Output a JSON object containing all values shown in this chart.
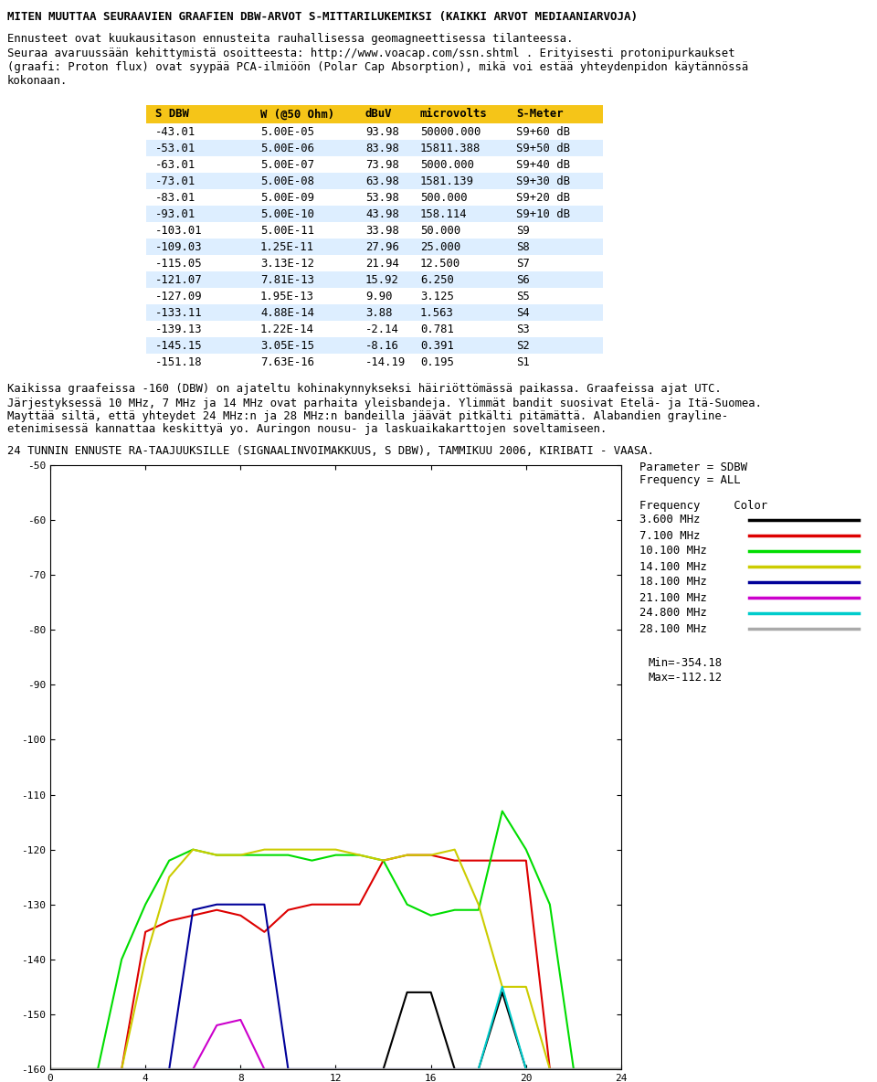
{
  "title_top": "MITEN MUUTTAA SEURAAVIEN GRAAFIEN DBW-ARVOT S-MITTARILUKEMIKSI (KAIKKI ARVOT MEDIAANIARVOJA)",
  "para1": "Ennusteet ovat kuukausitason ennusteita rauhallisessa geomagneettisessa tilanteessa.",
  "para2": "Seuraa avaruussään kehittymistä osoitteesta: http://www.voacap.com/ssn.shtml . Erityisesti protonipurkaukset\n(graafi: Proton flux) ovat syypää PCA-ilmiöön (Polar Cap Absorption), mikä voi estää yhteydenpidon käytännössä\nkokonaan.",
  "table_header": [
    "S DBW",
    "W (@50 Ohm)",
    "dBuV",
    "microvolts",
    "S-Meter"
  ],
  "table_data": [
    [
      "-43.01",
      "5.00E-05",
      "93.98",
      "50000.000",
      "S9+60 dB"
    ],
    [
      "-53.01",
      "5.00E-06",
      "83.98",
      "15811.388",
      "S9+50 dB"
    ],
    [
      "-63.01",
      "5.00E-07",
      "73.98",
      "5000.000",
      "S9+40 dB"
    ],
    [
      "-73.01",
      "5.00E-08",
      "63.98",
      "1581.139",
      "S9+30 dB"
    ],
    [
      "-83.01",
      "5.00E-09",
      "53.98",
      "500.000",
      "S9+20 dB"
    ],
    [
      "-93.01",
      "5.00E-10",
      "43.98",
      "158.114",
      "S9+10 dB"
    ],
    [
      "-103.01",
      "5.00E-11",
      "33.98",
      "50.000",
      "S9"
    ],
    [
      "-109.03",
      "1.25E-11",
      "27.96",
      "25.000",
      "S8"
    ],
    [
      "-115.05",
      "3.13E-12",
      "21.94",
      "12.500",
      "S7"
    ],
    [
      "-121.07",
      "7.81E-13",
      "15.92",
      "6.250",
      "S6"
    ],
    [
      "-127.09",
      "1.95E-13",
      "9.90",
      "3.125",
      "S5"
    ],
    [
      "-133.11",
      "4.88E-14",
      "3.88",
      "1.563",
      "S4"
    ],
    [
      "-139.13",
      "1.22E-14",
      "-2.14",
      "0.781",
      "S3"
    ],
    [
      "-145.15",
      "3.05E-15",
      "-8.16",
      "0.391",
      "S2"
    ],
    [
      "-151.18",
      "7.63E-16",
      "-14.19",
      "0.195",
      "S1"
    ]
  ],
  "para3": "Kaikissa graafeissa -160 (DBW) on ajateltu kohinakynnykseksi häiriöttömässä paikassa. Graafeissa ajat UTC.",
  "para4a": "Järjestyksessä 10 MHz, 7 MHz ja 14 MHz ovat parhaita yleisbandeja. Ylimmät bandit suosivat Etelä- ja Itä-Suomea.",
  "para4b": "Mayttää siltä, että yhteydet 24 MHz:n ja 28 MHz:n bandeilla jäävät pitkälti pitämättä. Alabandien grayline-",
  "para4c": "etenimisessä kannattaa keskittyä yo. Auringon nousu- ja laskuaikakarttojen soveltamiseen.",
  "chart_title": "24 TUNNIN ENNUSTE RA-TAAJUUKSILLE (SIGNAALINVOIMAKKUUS, S DBW), TAMMIKUU 2006, KIRIBATI - VAASA.",
  "param_line1": "Parameter = SDBW",
  "param_line2": "Frequency = ALL",
  "freq_header": "Frequency     Color",
  "frequencies": [
    "3.600 MHz",
    "7.100 MHz",
    "10.100 MHz",
    "14.100 MHz",
    "18.100 MHz",
    "21.100 MHz",
    "24.800 MHz",
    "28.100 MHz"
  ],
  "freq_colors": [
    "#000000",
    "#dd0000",
    "#00dd00",
    "#cccc00",
    "#000099",
    "#cc00cc",
    "#00cccc",
    "#aaaaaa"
  ],
  "min_label": "Min=-354.18",
  "max_label": "Max=-112.12",
  "ylim": [
    -160,
    -50
  ],
  "xlim": [
    0,
    24
  ],
  "yticks": [
    -160,
    -150,
    -140,
    -130,
    -120,
    -110,
    -100,
    -90,
    -80,
    -70,
    -60,
    -50
  ],
  "xticks": [
    0,
    4,
    8,
    12,
    16,
    20,
    24
  ],
  "series": {
    "3.600": {
      "x": [
        0,
        1,
        2,
        3,
        4,
        5,
        6,
        7,
        8,
        9,
        10,
        11,
        12,
        13,
        14,
        15,
        16,
        17,
        18,
        19,
        20,
        21,
        22,
        23,
        24
      ],
      "y": [
        -160,
        -160,
        -160,
        -160,
        -160,
        -160,
        -160,
        -160,
        -160,
        -160,
        -160,
        -160,
        -160,
        -160,
        -160,
        -146,
        -146,
        -160,
        -160,
        -146,
        -160,
        -160,
        -160,
        -160,
        -160
      ]
    },
    "7.100": {
      "x": [
        0,
        1,
        2,
        3,
        4,
        5,
        6,
        7,
        8,
        9,
        10,
        11,
        12,
        13,
        14,
        15,
        16,
        17,
        18,
        19,
        20,
        21,
        22,
        23,
        24
      ],
      "y": [
        -160,
        -160,
        -160,
        -160,
        -135,
        -133,
        -132,
        -131,
        -132,
        -135,
        -131,
        -130,
        -130,
        -130,
        -122,
        -121,
        -121,
        -122,
        -122,
        -122,
        -122,
        -160,
        -160,
        -160,
        -160
      ]
    },
    "10.100": {
      "x": [
        0,
        1,
        2,
        3,
        4,
        5,
        6,
        7,
        8,
        9,
        10,
        11,
        12,
        13,
        14,
        15,
        16,
        17,
        18,
        19,
        20,
        21,
        22,
        23,
        24
      ],
      "y": [
        -160,
        -160,
        -160,
        -140,
        -130,
        -122,
        -120,
        -121,
        -121,
        -121,
        -121,
        -122,
        -121,
        -121,
        -122,
        -130,
        -132,
        -131,
        -131,
        -113,
        -120,
        -130,
        -160,
        -160,
        -160
      ]
    },
    "14.100": {
      "x": [
        0,
        1,
        2,
        3,
        4,
        5,
        6,
        7,
        8,
        9,
        10,
        11,
        12,
        13,
        14,
        15,
        16,
        17,
        18,
        19,
        20,
        21,
        22,
        23,
        24
      ],
      "y": [
        -160,
        -160,
        -160,
        -160,
        -140,
        -125,
        -120,
        -121,
        -121,
        -120,
        -120,
        -120,
        -120,
        -121,
        -122,
        -121,
        -121,
        -120,
        -130,
        -145,
        -145,
        -160,
        -160,
        -160,
        -160
      ]
    },
    "18.100": {
      "x": [
        0,
        1,
        2,
        3,
        4,
        5,
        6,
        7,
        8,
        9,
        10,
        11,
        12,
        13,
        14,
        15,
        16,
        17,
        18,
        19,
        20,
        21,
        22,
        23,
        24
      ],
      "y": [
        -160,
        -160,
        -160,
        -160,
        -160,
        -160,
        -131,
        -130,
        -130,
        -130,
        -160,
        -160,
        -160,
        -160,
        -160,
        -160,
        -160,
        -160,
        -160,
        -160,
        -160,
        -160,
        -160,
        -160,
        -160
      ]
    },
    "21.100": {
      "x": [
        0,
        1,
        2,
        3,
        4,
        5,
        6,
        7,
        8,
        9,
        10,
        11,
        12,
        13,
        14,
        15,
        16,
        17,
        18,
        19,
        20,
        21,
        22,
        23,
        24
      ],
      "y": [
        -160,
        -160,
        -160,
        -160,
        -160,
        -160,
        -160,
        -152,
        -151,
        -160,
        -160,
        -160,
        -160,
        -160,
        -160,
        -160,
        -160,
        -160,
        -160,
        -160,
        -160,
        -160,
        -160,
        -160,
        -160
      ]
    },
    "24.800": {
      "x": [
        0,
        1,
        2,
        3,
        4,
        5,
        6,
        7,
        8,
        9,
        10,
        11,
        12,
        13,
        14,
        15,
        16,
        17,
        18,
        19,
        20,
        21,
        22,
        23,
        24
      ],
      "y": [
        -160,
        -160,
        -160,
        -160,
        -160,
        -160,
        -160,
        -160,
        -160,
        -160,
        -160,
        -160,
        -160,
        -160,
        -160,
        -160,
        -160,
        -160,
        -160,
        -145,
        -160,
        -160,
        -160,
        -160,
        -160
      ]
    },
    "28.100": {
      "x": [
        0,
        1,
        2,
        3,
        4,
        5,
        6,
        7,
        8,
        9,
        10,
        11,
        12,
        13,
        14,
        15,
        16,
        17,
        18,
        19,
        20,
        21,
        22,
        23,
        24
      ],
      "y": [
        -160,
        -160,
        -160,
        -160,
        -160,
        -160,
        -160,
        -160,
        -160,
        -160,
        -160,
        -160,
        -160,
        -160,
        -160,
        -160,
        -160,
        -160,
        -160,
        -160,
        -160,
        -160,
        -160,
        -160,
        -160
      ]
    }
  },
  "header_bg": "#f5c518",
  "row_bg_even": "#ddeeff",
  "bg_color": "#ffffff"
}
